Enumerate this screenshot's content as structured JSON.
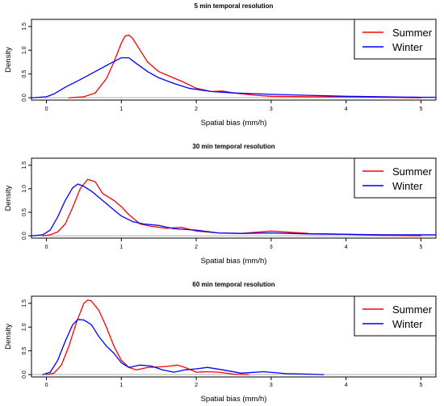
{
  "chart_data": [
    {
      "type": "line",
      "title": "5 min temporal resolution",
      "xlabel": "Spatial bias (mm/h)",
      "ylabel": "Density",
      "xlim": [
        -0.2,
        5.2
      ],
      "ylim": [
        -0.05,
        1.65
      ],
      "xticks": [
        0,
        1,
        2,
        3,
        4,
        5
      ],
      "yticks": [
        0.0,
        0.5,
        1.0,
        1.5
      ],
      "grid": false,
      "legend_position": "top-right",
      "series": [
        {
          "name": "Summer",
          "color": "#ff0000",
          "x": [
            0.3,
            0.5,
            0.65,
            0.8,
            0.9,
            1.0,
            1.05,
            1.1,
            1.15,
            1.25,
            1.35,
            1.5,
            1.65,
            1.8,
            2.0,
            2.2,
            2.35,
            2.5,
            2.8,
            3.0,
            3.5,
            4.0,
            4.5,
            5.0
          ],
          "y": [
            0.0,
            0.02,
            0.1,
            0.4,
            0.75,
            1.15,
            1.3,
            1.32,
            1.25,
            1.0,
            0.75,
            0.55,
            0.45,
            0.35,
            0.2,
            0.13,
            0.14,
            0.1,
            0.05,
            0.03,
            0.02,
            0.02,
            0.01,
            0.0
          ]
        },
        {
          "name": "Winter",
          "color": "#0000ff",
          "x": [
            -0.2,
            0.0,
            0.1,
            0.25,
            0.45,
            0.65,
            0.85,
            1.0,
            1.1,
            1.2,
            1.35,
            1.5,
            1.7,
            1.9,
            2.2,
            2.5,
            3.0,
            3.5,
            4.0,
            4.5,
            5.0,
            5.2
          ],
          "y": [
            0.0,
            0.02,
            0.08,
            0.22,
            0.38,
            0.55,
            0.72,
            0.84,
            0.84,
            0.72,
            0.55,
            0.42,
            0.3,
            0.2,
            0.13,
            0.1,
            0.07,
            0.05,
            0.03,
            0.02,
            0.01,
            0.01
          ]
        }
      ]
    },
    {
      "type": "line",
      "title": "30 min temporal resolution",
      "xlabel": "Spatial bias (mm/h)",
      "ylabel": "Density",
      "xlim": [
        -0.2,
        5.2
      ],
      "ylim": [
        -0.05,
        1.65
      ],
      "xticks": [
        0,
        1,
        2,
        3,
        4,
        5
      ],
      "yticks": [
        0.0,
        0.5,
        1.0,
        1.5
      ],
      "grid": false,
      "legend_position": "top-right",
      "series": [
        {
          "name": "Summer",
          "color": "#ff0000",
          "x": [
            -0.05,
            0.05,
            0.15,
            0.25,
            0.35,
            0.45,
            0.55,
            0.65,
            0.75,
            0.9,
            1.0,
            1.1,
            1.25,
            1.4,
            1.6,
            1.8,
            2.0,
            2.3,
            2.6,
            3.0,
            3.5,
            4.0,
            4.5,
            5.0
          ],
          "y": [
            0.0,
            0.02,
            0.08,
            0.25,
            0.6,
            1.0,
            1.2,
            1.15,
            0.9,
            0.75,
            0.62,
            0.45,
            0.25,
            0.2,
            0.16,
            0.18,
            0.1,
            0.06,
            0.05,
            0.1,
            0.05,
            0.03,
            0.01,
            0.0
          ]
        },
        {
          "name": "Winter",
          "color": "#0000ff",
          "x": [
            -0.2,
            -0.05,
            0.05,
            0.15,
            0.25,
            0.35,
            0.42,
            0.5,
            0.6,
            0.75,
            0.9,
            1.0,
            1.15,
            1.3,
            1.5,
            1.7,
            2.0,
            2.3,
            2.6,
            3.0,
            3.5,
            4.0,
            4.5,
            5.0,
            5.2
          ],
          "y": [
            0.0,
            0.02,
            0.12,
            0.4,
            0.75,
            1.02,
            1.1,
            1.05,
            0.95,
            0.75,
            0.55,
            0.42,
            0.3,
            0.25,
            0.22,
            0.15,
            0.12,
            0.06,
            0.05,
            0.06,
            0.04,
            0.03,
            0.02,
            0.02,
            0.02
          ]
        }
      ]
    },
    {
      "type": "line",
      "title": "60 min temporal resolution",
      "xlabel": "Spatial bias (mm/h)",
      "ylabel": "Density",
      "xlim": [
        -0.2,
        5.2
      ],
      "ylim": [
        -0.05,
        1.65
      ],
      "xticks": [
        0,
        1,
        2,
        3,
        4,
        5
      ],
      "yticks": [
        0.0,
        0.5,
        1.0,
        1.5
      ],
      "grid": false,
      "legend_position": "top-right",
      "series": [
        {
          "name": "Summer",
          "color": "#ff0000",
          "x": [
            0.0,
            0.1,
            0.2,
            0.3,
            0.4,
            0.5,
            0.55,
            0.6,
            0.7,
            0.8,
            0.9,
            1.0,
            1.1,
            1.2,
            1.35,
            1.5,
            1.65,
            1.75,
            1.85,
            2.0,
            2.15,
            2.3,
            2.5,
            2.7
          ],
          "y": [
            0.0,
            0.03,
            0.2,
            0.6,
            1.1,
            1.5,
            1.57,
            1.55,
            1.35,
            1.0,
            0.6,
            0.3,
            0.15,
            0.1,
            0.15,
            0.16,
            0.18,
            0.2,
            0.15,
            0.05,
            0.06,
            0.05,
            0.01,
            0.0
          ]
        },
        {
          "name": "Winter",
          "color": "#0000ff",
          "x": [
            -0.05,
            0.05,
            0.15,
            0.25,
            0.35,
            0.42,
            0.5,
            0.6,
            0.7,
            0.8,
            0.9,
            1.0,
            1.1,
            1.25,
            1.4,
            1.55,
            1.7,
            1.85,
            2.0,
            2.15,
            2.35,
            2.6,
            2.9,
            3.2,
            3.5,
            3.7
          ],
          "y": [
            0.0,
            0.05,
            0.3,
            0.7,
            1.05,
            1.16,
            1.15,
            1.05,
            0.8,
            0.6,
            0.45,
            0.25,
            0.15,
            0.2,
            0.18,
            0.1,
            0.05,
            0.1,
            0.12,
            0.15,
            0.1,
            0.03,
            0.06,
            0.02,
            0.01,
            0.0
          ]
        }
      ]
    }
  ]
}
